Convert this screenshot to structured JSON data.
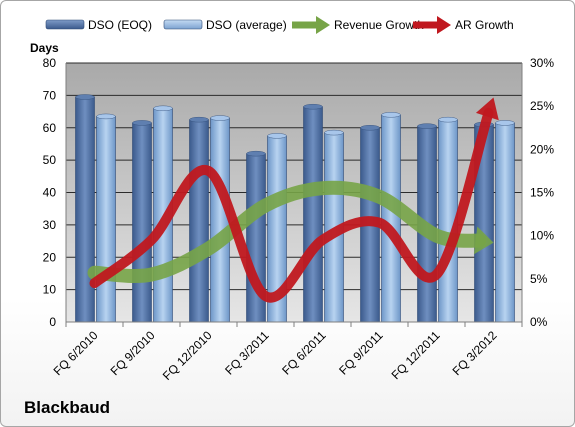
{
  "chart_data": {
    "type": "bar",
    "categories": [
      "FQ 6/2010",
      "FQ 9/2010",
      "FQ 12/2010",
      "FQ 3/2011",
      "FQ 6/2011",
      "FQ 9/2011",
      "FQ 12/2011",
      "FQ 3/2012"
    ],
    "series": [
      {
        "name": "DSO (EOQ)",
        "type": "bar",
        "axis": "left",
        "color": "#4f6fa0",
        "values": [
          69.5,
          61.5,
          62.5,
          52,
          66.5,
          60,
          60.5,
          61
        ]
      },
      {
        "name": "DSO (average)",
        "type": "bar",
        "axis": "left",
        "color": "#8fb3dd",
        "values": [
          63.5,
          66,
          63,
          57.5,
          58.5,
          64,
          62.5,
          61.5
        ]
      },
      {
        "name": "Revenue Growth",
        "type": "line",
        "axis": "right",
        "color": "#77a447",
        "values": [
          5.7,
          5.5,
          8.5,
          13.5,
          15.5,
          14.5,
          10,
          9.2
        ]
      },
      {
        "name": "AR Growth",
        "type": "line",
        "axis": "right",
        "color": "#c0181f",
        "values": [
          4.5,
          9.5,
          17.5,
          3,
          9.5,
          11.5,
          5.5,
          26
        ]
      }
    ],
    "ylabel": "Days",
    "ylim": [
      0,
      80
    ],
    "yticks": [
      0,
      10,
      20,
      30,
      40,
      50,
      60,
      70,
      80
    ],
    "y2lim": [
      0,
      30
    ],
    "y2ticks": [
      "0%",
      "5%",
      "10%",
      "15%",
      "20%",
      "25%",
      "30%"
    ],
    "grid": true,
    "legend_position": "top"
  },
  "company_label": "Blackbaud"
}
